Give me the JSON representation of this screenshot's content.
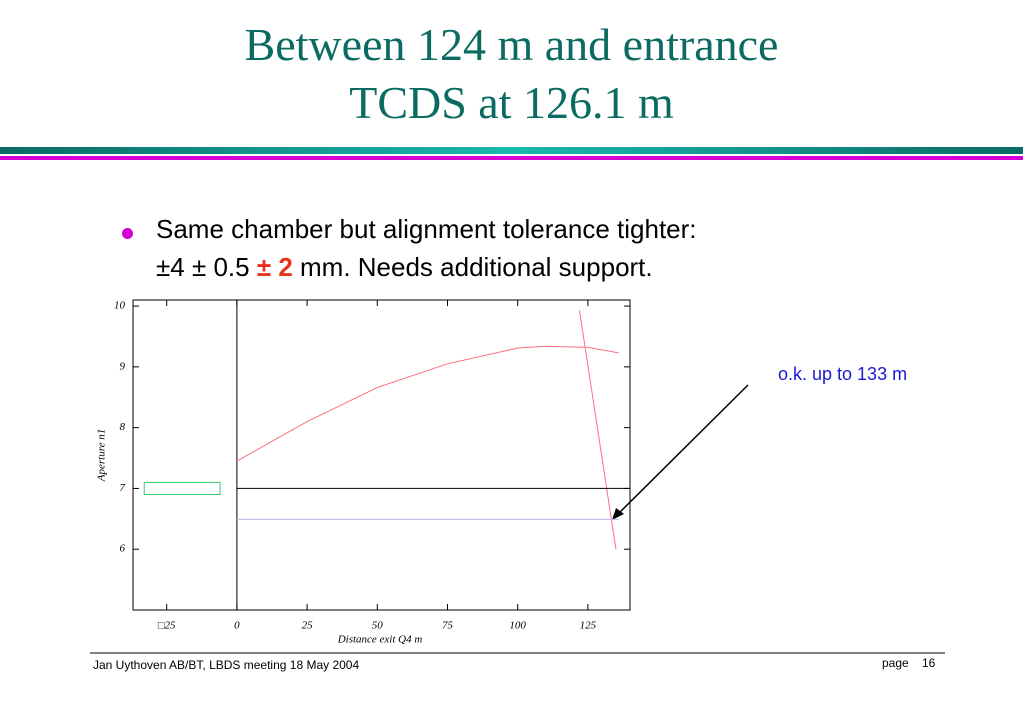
{
  "slide": {
    "title": [
      "Between 124 m and entrance",
      "TCDS at 126.1 m"
    ],
    "bullet": {
      "line1": "Same chamber but alignment tolerance tighter:",
      "prefix": "±4 ± 0.5 ",
      "highlight": "± 2",
      "suffix": " mm. Needs additional support."
    },
    "annotation": "o.k. up to 133 m",
    "footer": {
      "left": "Jan Uythoven AB/BT, LBDS meeting 18 May 2004",
      "page_label": "page",
      "page_number": "16"
    }
  },
  "chart_data": {
    "type": "line",
    "x_label": "Distance exit  Q4   m",
    "y_label": "Aperture n1",
    "xlim": [
      -37,
      140
    ],
    "ylim": [
      5,
      10.1
    ],
    "xticks": [
      {
        "value": -25,
        "label": "□25"
      },
      0,
      25,
      50,
      75,
      100,
      125
    ],
    "yticks": [
      6,
      7,
      8,
      9,
      10
    ],
    "series": [
      {
        "color": "#ff6f80",
        "x": [
          0,
          25,
          50,
          75,
          100,
          110,
          125,
          136
        ],
        "values": [
          7.45,
          8.1,
          8.66,
          9.05,
          9.31,
          9.34,
          9.32,
          9.23
        ]
      },
      {
        "color": "#ff6f80",
        "x": [
          122,
          135
        ],
        "values": [
          9.93,
          6.0
        ]
      },
      {
        "color": "#b8b8f0",
        "x": [
          0,
          136
        ],
        "values": [
          6.49,
          6.49
        ]
      },
      {
        "color": "#000000",
        "x": [
          0,
          140
        ],
        "values": [
          7,
          7
        ]
      },
      {
        "color": "#33cc66",
        "x": [
          -33,
          -6,
          -6,
          -33,
          -33
        ],
        "values": [
          7.1,
          7.1,
          6.9,
          6.9,
          7.1
        ]
      }
    ]
  }
}
